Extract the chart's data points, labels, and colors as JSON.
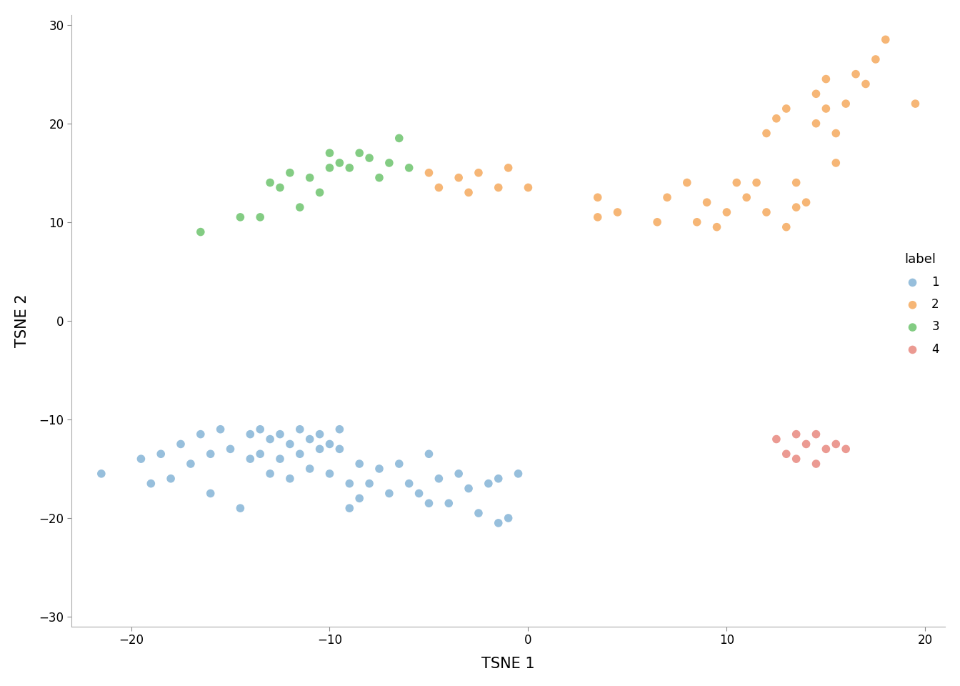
{
  "title": "",
  "xlabel": "TSNE 1",
  "ylabel": "TSNE 2",
  "xlim": [
    -23,
    21
  ],
  "ylim": [
    -31,
    31
  ],
  "xticks": [
    -20,
    -10,
    0,
    10,
    20
  ],
  "yticks": [
    -30,
    -20,
    -10,
    0,
    10,
    20,
    30
  ],
  "background_color": "#ffffff",
  "colors": {
    "1": "#85B4D6",
    "2": "#F5AA5E",
    "3": "#6DC46D",
    "4": "#E8887F"
  },
  "legend_title": "label",
  "clusters": {
    "1": {
      "x": [
        -21.5,
        -19.5,
        -19.0,
        -18.5,
        -18.0,
        -17.5,
        -17.0,
        -16.5,
        -16.0,
        -16.0,
        -15.5,
        -15.0,
        -14.5,
        -14.0,
        -14.0,
        -13.5,
        -13.5,
        -13.0,
        -13.0,
        -12.5,
        -12.5,
        -12.0,
        -12.0,
        -11.5,
        -11.5,
        -11.0,
        -11.0,
        -10.5,
        -10.5,
        -10.0,
        -10.0,
        -9.5,
        -9.5,
        -9.0,
        -9.0,
        -8.5,
        -8.5,
        -8.0,
        -7.5,
        -7.0,
        -6.5,
        -6.0,
        -5.5,
        -5.0,
        -5.0,
        -4.5,
        -4.0,
        -3.5,
        -3.0,
        -2.5,
        -2.0,
        -1.5,
        -1.5,
        -1.0,
        -0.5
      ],
      "y": [
        -15.5,
        -14.0,
        -16.5,
        -13.5,
        -16.0,
        -12.5,
        -14.5,
        -11.5,
        -13.5,
        -17.5,
        -11.0,
        -13.0,
        -19.0,
        -11.5,
        -14.0,
        -11.0,
        -13.5,
        -12.0,
        -15.5,
        -11.5,
        -14.0,
        -12.5,
        -16.0,
        -11.0,
        -13.5,
        -12.0,
        -15.0,
        -11.5,
        -13.0,
        -12.5,
        -15.5,
        -11.0,
        -13.0,
        -16.5,
        -19.0,
        -14.5,
        -18.0,
        -16.5,
        -15.0,
        -17.5,
        -14.5,
        -16.5,
        -17.5,
        -13.5,
        -18.5,
        -16.0,
        -18.5,
        -15.5,
        -17.0,
        -19.5,
        -16.5,
        -16.0,
        -20.5,
        -20.0,
        -15.5
      ]
    },
    "2": {
      "x": [
        -5.0,
        -4.5,
        -3.5,
        -3.0,
        -2.5,
        -1.5,
        -1.0,
        0.0,
        3.5,
        3.5,
        4.5,
        6.5,
        7.0,
        8.0,
        8.5,
        9.0,
        9.5,
        10.0,
        10.5,
        11.0,
        11.5,
        12.0,
        12.0,
        12.5,
        13.0,
        13.0,
        13.5,
        13.5,
        14.0,
        14.5,
        14.5,
        15.0,
        15.0,
        15.5,
        15.5,
        16.0,
        16.5,
        17.0,
        17.5,
        18.0,
        19.5
      ],
      "y": [
        15.0,
        13.5,
        14.5,
        13.0,
        15.0,
        13.5,
        15.5,
        13.5,
        12.5,
        10.5,
        11.0,
        10.0,
        12.5,
        14.0,
        10.0,
        12.0,
        9.5,
        11.0,
        14.0,
        12.5,
        14.0,
        19.0,
        11.0,
        20.5,
        21.5,
        9.5,
        11.5,
        14.0,
        12.0,
        20.0,
        23.0,
        21.5,
        24.5,
        16.0,
        19.0,
        22.0,
        25.0,
        24.0,
        26.5,
        28.5,
        22.0
      ]
    },
    "3": {
      "x": [
        -16.5,
        -14.5,
        -13.5,
        -13.0,
        -12.5,
        -12.0,
        -11.5,
        -11.0,
        -10.5,
        -10.0,
        -10.0,
        -9.5,
        -9.0,
        -8.5,
        -8.0,
        -7.5,
        -7.0,
        -6.5,
        -6.0
      ],
      "y": [
        9.0,
        10.5,
        10.5,
        14.0,
        13.5,
        15.0,
        11.5,
        14.5,
        13.0,
        15.5,
        17.0,
        16.0,
        15.5,
        17.0,
        16.5,
        14.5,
        16.0,
        18.5,
        15.5
      ]
    },
    "4": {
      "x": [
        12.5,
        13.0,
        13.5,
        13.5,
        14.0,
        14.5,
        14.5,
        15.0,
        15.5,
        16.0
      ],
      "y": [
        -12.0,
        -13.5,
        -11.5,
        -14.0,
        -12.5,
        -11.5,
        -14.5,
        -13.0,
        -12.5,
        -13.0
      ]
    }
  }
}
